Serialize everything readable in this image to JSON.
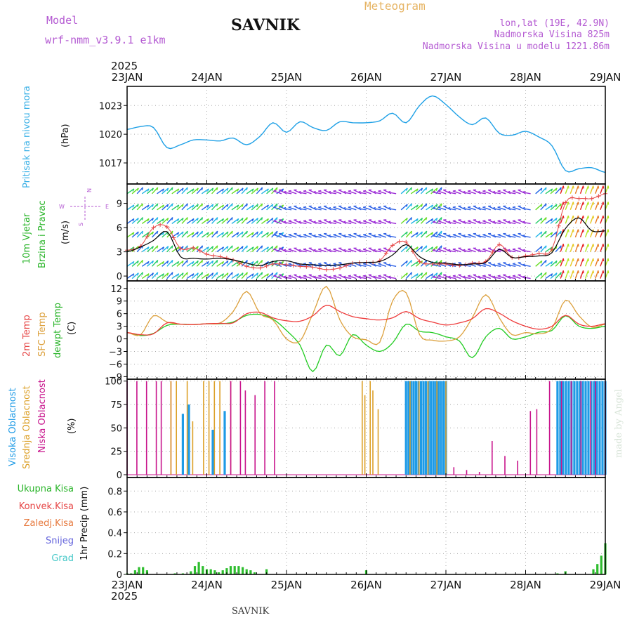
{
  "header": {
    "model_label": "Model",
    "model_name": "wrf-nmm_v3.9.1  e1km",
    "station": "SAVNIK",
    "product": "Meteogram",
    "lonlat": "lon,lat (19E, 42.9N)",
    "altitude": "Nadmorska Visina 825m",
    "model_altitude": "Nadmorska Visina u modelu 1221.86m",
    "year": "2025",
    "footer_station": "SAVNIK",
    "signature": "made by Angel"
  },
  "time_axis": {
    "days": [
      "23JAN",
      "24JAN",
      "25JAN",
      "26JAN",
      "27JAN",
      "28JAN",
      "29JAN"
    ],
    "year": "2025"
  },
  "colors": {
    "pressure": "#1ea0e6",
    "temp2m": "#ee3b3b",
    "sfc": "#dca03c",
    "dewpt": "#22cc22",
    "high_cloud": "#1e9be6",
    "mid_cloud": "#dca028",
    "low_cloud": "#c8148c",
    "precip_total": "#2ebd2e",
    "label_purple": "#b45ad2",
    "label_blue": "#3ab0e6",
    "label_green": "#28b428",
    "label_orange": "#e6a03c",
    "label_red": "#e64646",
    "label_violet": "#6464dc",
    "label_cyan": "#46c8c8"
  },
  "chart_data": [
    {
      "id": "pressure",
      "type": "line",
      "ylabel_left": "Pritisak na nivou mora",
      "unit": "(hPa)",
      "yticks": [
        1017,
        1020,
        1023
      ],
      "ylim": [
        1014.8,
        1025
      ],
      "series": [
        {
          "x": [
            0,
            0.17,
            0.33,
            0.5,
            0.67,
            0.83,
            1,
            1.17,
            1.33,
            1.5,
            1.67,
            1.83,
            2,
            2.17,
            2.33,
            2.5,
            2.67,
            2.83,
            3,
            3.17,
            3.33,
            3.5,
            3.67,
            3.83,
            4,
            4.17,
            4.33,
            4.5,
            4.67,
            4.83,
            5,
            5.17,
            5.33,
            5.5,
            5.67,
            5.83,
            6
          ],
          "values": [
            1020.5,
            1020.8,
            1020.7,
            1018.6,
            1018.9,
            1019.4,
            1019.4,
            1019.3,
            1019.6,
            1018.9,
            1019.8,
            1021.2,
            1020.2,
            1021.3,
            1020.7,
            1020.4,
            1021.3,
            1021.2,
            1021.2,
            1021.4,
            1022.2,
            1021.2,
            1023.0,
            1024.0,
            1023.1,
            1021.8,
            1021.0,
            1021.7,
            1020.1,
            1019.9,
            1020.3,
            1019.7,
            1018.8,
            1016.2,
            1016.4,
            1016.5,
            1016.0
          ]
        }
      ]
    },
    {
      "id": "wind",
      "type": "line",
      "ylabel_left": "10m Vjetar",
      "ylabel_left2": "Brzina i Pravac",
      "unit": "(m/s)",
      "compass": [
        "N",
        "W",
        "E",
        "S"
      ],
      "yticks": [
        0,
        3,
        6,
        9
      ],
      "ylim": [
        -0.6,
        11.4
      ],
      "series": [
        {
          "name": "speed",
          "x": [
            0,
            0.17,
            0.33,
            0.5,
            0.67,
            0.83,
            1,
            1.17,
            1.33,
            1.5,
            1.67,
            1.83,
            2,
            2.17,
            2.33,
            2.5,
            2.67,
            2.83,
            3,
            3.17,
            3.33,
            3.5,
            3.67,
            3.83,
            4,
            4.17,
            4.33,
            4.5,
            4.67,
            4.83,
            5,
            5.17,
            5.33,
            5.5,
            5.67,
            5.83,
            6
          ],
          "values": [
            3.0,
            3.6,
            4.4,
            5.5,
            2.4,
            2.2,
            2.1,
            2.2,
            2.0,
            1.6,
            1.3,
            1.8,
            1.9,
            1.5,
            1.4,
            1.3,
            1.4,
            1.6,
            1.7,
            1.8,
            2.6,
            3.9,
            2.4,
            1.7,
            1.6,
            1.4,
            1.5,
            1.7,
            3.3,
            2.3,
            2.4,
            2.5,
            2.9,
            5.9,
            7.2,
            5.6,
            5.6
          ]
        },
        {
          "name": "gust",
          "x": [
            0,
            0.17,
            0.33,
            0.5,
            0.67,
            0.83,
            1,
            1.17,
            1.33,
            1.5,
            1.67,
            1.83,
            2,
            2.17,
            2.33,
            2.5,
            2.67,
            2.83,
            3,
            3.17,
            3.33,
            3.5,
            3.67,
            3.83,
            4,
            4.17,
            4.33,
            4.5,
            4.67,
            4.83,
            5,
            5.17,
            5.33,
            5.5,
            5.67,
            5.83,
            6
          ],
          "values": [
            3.2,
            3.7,
            6.0,
            6.1,
            3.4,
            3.5,
            2.7,
            2.4,
            2.0,
            1.2,
            1.0,
            1.5,
            1.4,
            1.2,
            1.1,
            0.8,
            1.0,
            1.6,
            1.7,
            1.9,
            3.8,
            4.2,
            1.8,
            1.5,
            1.5,
            1.3,
            1.6,
            1.8,
            3.9,
            2.3,
            2.5,
            2.8,
            3.3,
            9.1,
            9.6,
            9.6,
            10.2
          ]
        }
      ]
    },
    {
      "id": "temperature",
      "type": "line",
      "ylabel_left": "2m Temp",
      "ylabel_left2": "SFC Temp",
      "ylabel_left3": "dewpt Temp",
      "unit": "(C)",
      "yticks": [
        -9,
        -6,
        -3,
        0,
        3,
        6,
        9,
        12
      ],
      "ylim": [
        -9.6,
        13.8
      ],
      "series": [
        {
          "name": "2m Temp",
          "x": [
            0,
            0.17,
            0.33,
            0.5,
            0.67,
            0.83,
            1,
            1.17,
            1.33,
            1.5,
            1.67,
            1.83,
            2,
            2.17,
            2.33,
            2.5,
            2.67,
            2.83,
            3,
            3.17,
            3.33,
            3.5,
            3.67,
            3.83,
            4,
            4.17,
            4.33,
            4.5,
            4.67,
            4.83,
            5,
            5.17,
            5.33,
            5.5,
            5.67,
            5.83,
            6
          ],
          "values": [
            1.5,
            1.0,
            1.2,
            3.8,
            3.5,
            3.4,
            3.6,
            3.7,
            3.8,
            6.0,
            6.3,
            5.0,
            4.3,
            4.2,
            5.5,
            8.0,
            6.5,
            5.3,
            4.8,
            4.5,
            5.0,
            6.5,
            4.8,
            4.0,
            3.3,
            3.8,
            4.8,
            7.2,
            6.1,
            4.3,
            3.0,
            2.3,
            3.0,
            5.6,
            3.5,
            3.0,
            3.6
          ]
        },
        {
          "name": "SFC Temp",
          "x": [
            0,
            0.17,
            0.33,
            0.5,
            0.67,
            0.83,
            1,
            1.17,
            1.33,
            1.5,
            1.67,
            1.83,
            2,
            2.17,
            2.33,
            2.5,
            2.67,
            2.83,
            3,
            3.17,
            3.33,
            3.5,
            3.67,
            3.83,
            4,
            4.17,
            4.33,
            4.5,
            4.67,
            4.83,
            5,
            5.17,
            5.33,
            5.5,
            5.67,
            5.83,
            6
          ],
          "values": [
            1.5,
            1.0,
            5.5,
            4.0,
            3.5,
            3.4,
            3.6,
            3.8,
            6.5,
            11.3,
            6.0,
            4.5,
            0.0,
            -0.5,
            6.0,
            12.5,
            4.5,
            0.5,
            -0.2,
            -0.8,
            9.0,
            11.0,
            1.0,
            -0.3,
            -0.5,
            0.5,
            5.0,
            10.5,
            5.0,
            1.0,
            1.5,
            1.2,
            2.5,
            9.2,
            5.5,
            2.8,
            3.5
          ]
        },
        {
          "name": "dewpt Temp",
          "x": [
            0,
            0.17,
            0.33,
            0.5,
            0.67,
            0.83,
            1,
            1.17,
            1.33,
            1.5,
            1.67,
            1.83,
            2,
            2.17,
            2.33,
            2.5,
            2.67,
            2.83,
            3,
            3.17,
            3.33,
            3.5,
            3.67,
            3.83,
            4,
            4.17,
            4.33,
            4.5,
            4.67,
            4.83,
            5,
            5.17,
            5.33,
            5.5,
            5.67,
            5.83,
            6
          ],
          "values": [
            1.5,
            0.8,
            1.3,
            3.2,
            3.5,
            3.4,
            3.6,
            3.6,
            4.0,
            5.6,
            5.8,
            4.7,
            2.0,
            -1.5,
            -7.8,
            -1.5,
            -4.0,
            1.0,
            -1.5,
            -3.0,
            -1.0,
            3.5,
            1.8,
            1.5,
            0.5,
            -0.5,
            -4.5,
            0.5,
            2.5,
            0.0,
            0.5,
            1.6,
            2.0,
            5.5,
            3.0,
            2.5,
            3.0
          ]
        }
      ]
    },
    {
      "id": "clouds",
      "type": "bar",
      "ylabel_left": "Visoka Oblacnost",
      "ylabel_left2": "Srednja Oblacnost",
      "ylabel_left3": "Niska Oblacnost",
      "unit": "(%)",
      "yticks": [
        0,
        25,
        50,
        75,
        100
      ],
      "ylim": [
        -3,
        102
      ],
      "segments": [
        {
          "name": "low",
          "from": 0.0,
          "to": 0.55,
          "values": [
            100,
            0,
            100,
            0,
            100,
            0,
            100,
            100,
            0,
            100
          ]
        },
        {
          "name": "mid",
          "from": 0.55,
          "to": 1.3,
          "values": [
            100,
            100,
            0,
            100,
            57,
            0,
            100,
            100,
            100,
            100,
            0,
            100
          ]
        },
        {
          "name": "high",
          "from": 0.55,
          "to": 1.3,
          "values": [
            0,
            0,
            65,
            75,
            0,
            0,
            0,
            48,
            0,
            68,
            0
          ]
        },
        {
          "name": "low",
          "from": 1.3,
          "to": 1.85,
          "values": [
            100,
            0,
            100,
            90,
            0,
            85,
            0,
            100,
            0,
            100
          ]
        },
        {
          "name": "mid",
          "from": 2.95,
          "to": 3.15,
          "values": [
            100,
            85,
            0,
            100,
            90,
            0,
            70
          ]
        },
        {
          "name": "high",
          "from": 3.5,
          "to": 4.0,
          "values": [
            100,
            100,
            100,
            100,
            100,
            100,
            100,
            100,
            100,
            100,
            100,
            100,
            100,
            100,
            100,
            100,
            100
          ]
        },
        {
          "name": "mid",
          "from": 3.55,
          "to": 4.0,
          "values": [
            100,
            0,
            100,
            0,
            100,
            0,
            100,
            0,
            100
          ]
        },
        {
          "name": "low",
          "from": 4.1,
          "to": 5.3,
          "values": [
            8,
            0,
            5,
            0,
            3,
            0,
            36,
            0,
            20,
            0,
            15,
            0,
            68,
            70,
            0,
            100
          ]
        },
        {
          "name": "high",
          "from": 5.4,
          "to": 6.0,
          "values": [
            100,
            100,
            100,
            100,
            100,
            100,
            100,
            100,
            100,
            100,
            100,
            100,
            100,
            100,
            100,
            100,
            100,
            100
          ]
        },
        {
          "name": "low",
          "from": 5.45,
          "to": 6.0,
          "values": [
            100,
            0,
            100,
            0,
            100,
            0,
            100,
            100,
            0,
            100
          ]
        }
      ]
    },
    {
      "id": "precip",
      "type": "bar",
      "legend": [
        "Ukupna Kisa",
        "Konvek.Kisa",
        "Zaledj.Kisa",
        "Snijeg",
        "Grad"
      ],
      "unit": "1hr Precip (mm)",
      "yticks": [
        0,
        0.2,
        0.4,
        0.6,
        0.8
      ],
      "ylim": [
        0,
        0.93
      ],
      "bars": [
        {
          "x": 0.0,
          "v": 0.01
        },
        {
          "x": 0.05,
          "v": 0.01
        },
        {
          "x": 0.1,
          "v": 0.04
        },
        {
          "x": 0.15,
          "v": 0.07
        },
        {
          "x": 0.2,
          "v": 0.07
        },
        {
          "x": 0.25,
          "v": 0.04
        },
        {
          "x": 0.6,
          "v": 0.01
        },
        {
          "x": 0.7,
          "v": 0.01
        },
        {
          "x": 0.8,
          "v": 0.03
        },
        {
          "x": 0.85,
          "v": 0.08
        },
        {
          "x": 0.9,
          "v": 0.12
        },
        {
          "x": 0.95,
          "v": 0.08
        },
        {
          "x": 1.0,
          "v": 0.05
        },
        {
          "x": 1.05,
          "v": 0.05
        },
        {
          "x": 1.1,
          "v": 0.04
        },
        {
          "x": 1.15,
          "v": 0.02
        },
        {
          "x": 1.2,
          "v": 0.04
        },
        {
          "x": 1.25,
          "v": 0.06
        },
        {
          "x": 1.3,
          "v": 0.08
        },
        {
          "x": 1.35,
          "v": 0.08
        },
        {
          "x": 1.4,
          "v": 0.08
        },
        {
          "x": 1.45,
          "v": 0.07
        },
        {
          "x": 1.5,
          "v": 0.05
        },
        {
          "x": 1.55,
          "v": 0.04
        },
        {
          "x": 1.6,
          "v": 0.02
        },
        {
          "x": 1.75,
          "v": 0.05
        },
        {
          "x": 3.0,
          "v": 0.04
        },
        {
          "x": 5.4,
          "v": 0.01
        },
        {
          "x": 5.5,
          "v": 0.03
        },
        {
          "x": 5.85,
          "v": 0.05
        },
        {
          "x": 5.9,
          "v": 0.1
        },
        {
          "x": 5.95,
          "v": 0.18
        },
        {
          "x": 6.0,
          "v": 0.3
        }
      ]
    }
  ]
}
